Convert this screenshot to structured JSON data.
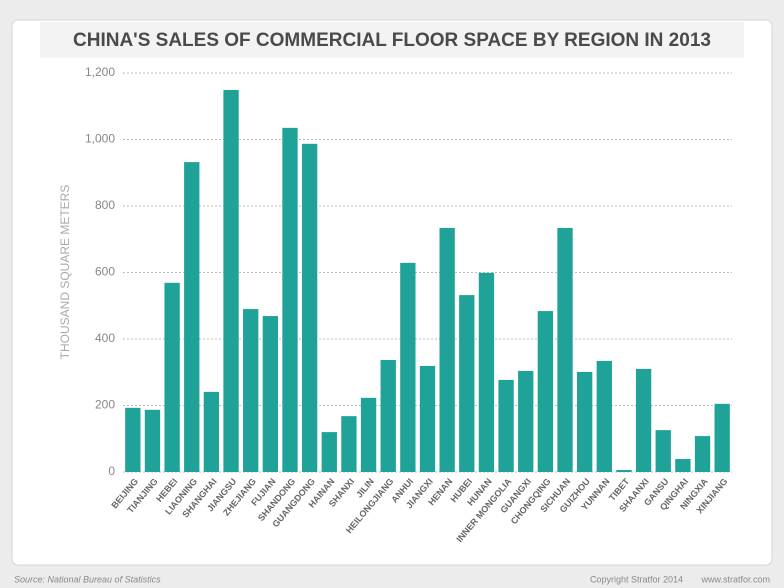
{
  "chart_data": {
    "type": "bar",
    "title": "CHINA'S SALES OF COMMERCIAL FLOOR SPACE BY REGION IN 2013",
    "y_label": "THOUSAND SQUARE METERS",
    "source": "Source: National Bureau of Statistics",
    "copyright": "Copyright Stratfor 2014",
    "website": "www.stratfor.com",
    "categories": [
      "BEIJING",
      "TIANJING",
      "HEBEI",
      "LIAONING",
      "SHANGHAI",
      "JIANGSU",
      "ZHEJIANG",
      "FUJIAN",
      "SHANDONG",
      "GUANGDONG",
      "HAINAN",
      "SHANXI",
      "JILIN",
      "HEILONGJIANG",
      "ANHUI",
      "JIANGXI",
      "HENAN",
      "HUBEI",
      "HUNAN",
      "INNER MONGOLIA",
      "GUANGXI",
      "CHONGQING",
      "SICHUAN",
      "GUIZHOU",
      "YUNNAN",
      "TIBET",
      "SHAANXI",
      "GANSU",
      "QINGHAI",
      "NINGXIA",
      "XINJIANG"
    ],
    "values": [
      193,
      187,
      569,
      932,
      241,
      1149,
      490,
      469,
      1035,
      987,
      120,
      168,
      223,
      337,
      629,
      319,
      734,
      532,
      599,
      277,
      304,
      484,
      734,
      301,
      334,
      6,
      310,
      126,
      39,
      108,
      205
    ],
    "color": "#1fa398",
    "ylim": [
      0,
      1200
    ],
    "yticks": [
      0,
      200,
      400,
      600,
      800,
      {
        "value": 1000,
        "label": "1,000"
      },
      {
        "value": 1200,
        "label": "1,200"
      }
    ],
    "grid": true
  }
}
